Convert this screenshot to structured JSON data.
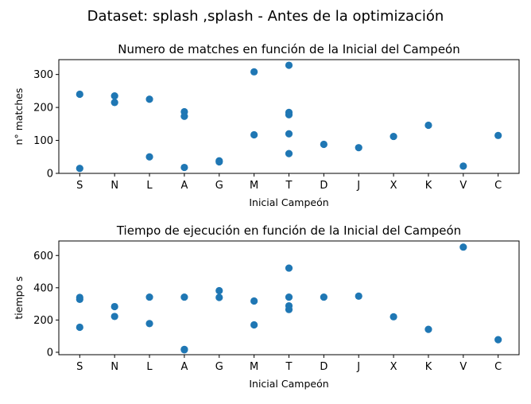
{
  "figure": {
    "suptitle": "Dataset: splash ,splash - Antes de la optimización"
  },
  "colors": {
    "points": "#1f77b4",
    "axes": "#000000",
    "background": "#ffffff"
  },
  "chart_data": [
    {
      "type": "scatter",
      "title": "Numero de matches en función de la Inicial del Campeón",
      "xlabel": "Inicial Campeón",
      "ylabel": "n° matches",
      "categories": [
        "S",
        "N",
        "L",
        "A",
        "G",
        "M",
        "T",
        "D",
        "J",
        "X",
        "K",
        "V",
        "C"
      ],
      "ylim": [
        0,
        345
      ],
      "yticks": [
        0,
        100,
        200,
        300
      ],
      "grid": false,
      "points": [
        {
          "x": "S",
          "y": 240
        },
        {
          "x": "S",
          "y": 15
        },
        {
          "x": "N",
          "y": 235
        },
        {
          "x": "N",
          "y": 215
        },
        {
          "x": "L",
          "y": 225
        },
        {
          "x": "L",
          "y": 50
        },
        {
          "x": "A",
          "y": 187
        },
        {
          "x": "A",
          "y": 173
        },
        {
          "x": "A",
          "y": 18
        },
        {
          "x": "G",
          "y": 38
        },
        {
          "x": "G",
          "y": 35
        },
        {
          "x": "M",
          "y": 308
        },
        {
          "x": "M",
          "y": 117
        },
        {
          "x": "T",
          "y": 328
        },
        {
          "x": "T",
          "y": 185
        },
        {
          "x": "T",
          "y": 178
        },
        {
          "x": "T",
          "y": 120
        },
        {
          "x": "T",
          "y": 60
        },
        {
          "x": "D",
          "y": 88
        },
        {
          "x": "J",
          "y": 78
        },
        {
          "x": "X",
          "y": 112
        },
        {
          "x": "K",
          "y": 146
        },
        {
          "x": "V",
          "y": 22
        },
        {
          "x": "C",
          "y": 115
        }
      ]
    },
    {
      "type": "scatter",
      "title": "Tiempo de ejecución en función de la Inicial del Campeón",
      "xlabel": "Inicial Campeón",
      "ylabel": "tiempo s",
      "categories": [
        "S",
        "N",
        "L",
        "A",
        "G",
        "M",
        "T",
        "D",
        "J",
        "X",
        "K",
        "V",
        "C"
      ],
      "ylim": [
        -15,
        690
      ],
      "yticks": [
        0,
        200,
        400,
        600
      ],
      "grid": false,
      "points": [
        {
          "x": "S",
          "y": 340
        },
        {
          "x": "S",
          "y": 328
        },
        {
          "x": "S",
          "y": 155
        },
        {
          "x": "N",
          "y": 283
        },
        {
          "x": "N",
          "y": 222
        },
        {
          "x": "L",
          "y": 342
        },
        {
          "x": "L",
          "y": 178
        },
        {
          "x": "A",
          "y": 342
        },
        {
          "x": "A",
          "y": 18
        },
        {
          "x": "A",
          "y": 15
        },
        {
          "x": "G",
          "y": 382
        },
        {
          "x": "G",
          "y": 340
        },
        {
          "x": "M",
          "y": 318
        },
        {
          "x": "M",
          "y": 170
        },
        {
          "x": "T",
          "y": 522
        },
        {
          "x": "T",
          "y": 342
        },
        {
          "x": "T",
          "y": 288
        },
        {
          "x": "T",
          "y": 265
        },
        {
          "x": "D",
          "y": 342
        },
        {
          "x": "J",
          "y": 348
        },
        {
          "x": "X",
          "y": 220
        },
        {
          "x": "K",
          "y": 142
        },
        {
          "x": "V",
          "y": 652
        },
        {
          "x": "C",
          "y": 78
        }
      ]
    }
  ]
}
